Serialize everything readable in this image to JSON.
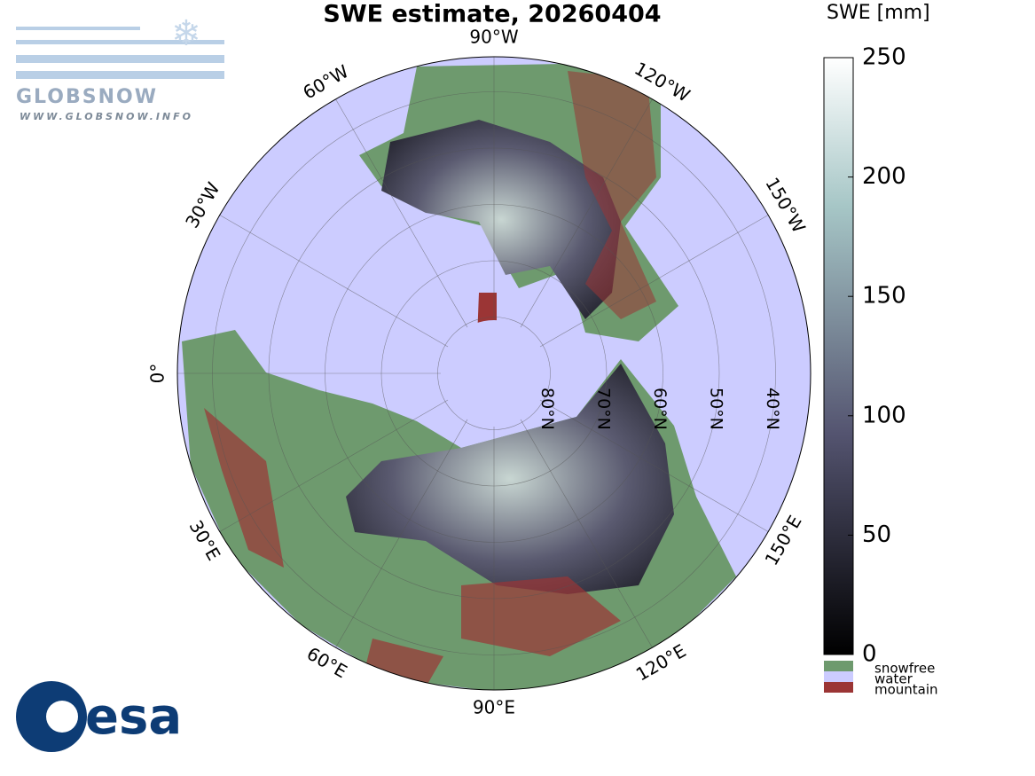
{
  "title": "SWE estimate, 20260404",
  "map": {
    "lon_labels": [
      {
        "value": -90,
        "label": "90°W"
      },
      {
        "value": -60,
        "label": "60°W"
      },
      {
        "value": -30,
        "label": "30°W"
      },
      {
        "value": 0,
        "label": "0°"
      },
      {
        "value": 30,
        "label": "30°E"
      },
      {
        "value": 60,
        "label": "60°E"
      },
      {
        "value": 90,
        "label": "90°E"
      },
      {
        "value": 120,
        "label": "120°E"
      },
      {
        "value": 150,
        "label": "150°E"
      },
      {
        "value": -150,
        "label": "150°W"
      },
      {
        "value": -120,
        "label": "120°W"
      }
    ],
    "lat_labels": [
      {
        "value": 80,
        "label": "80°N"
      },
      {
        "value": 70,
        "label": "70°N"
      },
      {
        "value": 60,
        "label": "60°N"
      },
      {
        "value": 50,
        "label": "50°N"
      },
      {
        "value": 40,
        "label": "40°N"
      }
    ]
  },
  "colorbar": {
    "title": "SWE [mm]",
    "lim": [
      0,
      250
    ],
    "ticks": [
      0,
      50,
      100,
      150,
      200,
      250
    ]
  },
  "legend": [
    {
      "label": "snowfree",
      "color": "#6e9a6e"
    },
    {
      "label": "water",
      "color": "#ccccff"
    },
    {
      "label": "mountain",
      "color": "#9b3535"
    }
  ],
  "logos": {
    "globsnow": "GLOBSNOW",
    "url": "WWW.GLOBSNOW.INFO",
    "esa": "esa"
  }
}
